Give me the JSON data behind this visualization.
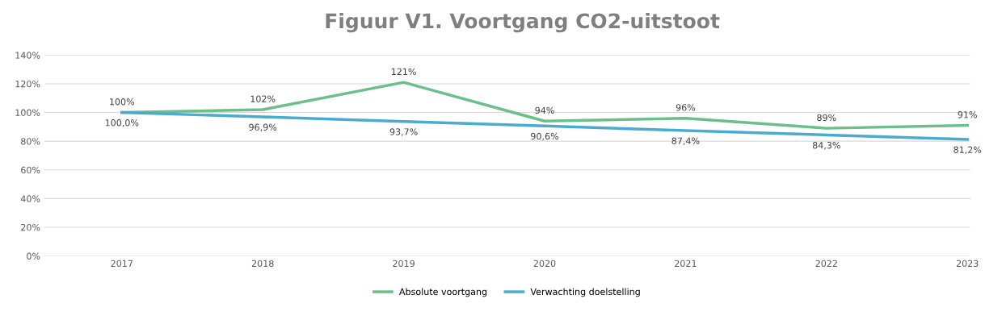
{
  "chart_data": {
    "type": "line",
    "title": "Figuur V1. Voortgang CO2-uitstoot",
    "categories": [
      "2017",
      "2018",
      "2019",
      "2020",
      "2021",
      "2022",
      "2023"
    ],
    "series": [
      {
        "name": "Absolute voortgang",
        "color": "#6cbf8a",
        "values": [
          100,
          102,
          121,
          94,
          96,
          89,
          91
        ],
        "value_labels": [
          "100%",
          "102%",
          "121%",
          "94%",
          "96%",
          "89%",
          "91%"
        ]
      },
      {
        "name": "Verwachting doelstelling",
        "color": "#4babcf",
        "values": [
          100,
          96.9,
          93.7,
          90.6,
          87.4,
          84.3,
          81.2
        ],
        "value_labels": [
          "100,0%",
          "96,9%",
          "93,7%",
          "90,6%",
          "87,4%",
          "84,3%",
          "81,2%"
        ]
      }
    ],
    "ylim": [
      0,
      140
    ],
    "yticks": [
      {
        "value": 0,
        "label": "0%"
      },
      {
        "value": 20,
        "label": "20%"
      },
      {
        "value": 40,
        "label": "40%"
      },
      {
        "value": 60,
        "label": "60%"
      },
      {
        "value": 80,
        "label": "80%"
      },
      {
        "value": 100,
        "label": "100%"
      },
      {
        "value": 120,
        "label": "120%"
      },
      {
        "value": 140,
        "label": "140%"
      }
    ],
    "grid": "y",
    "legend": "bottom",
    "marker": "none",
    "line_style": "solid"
  }
}
